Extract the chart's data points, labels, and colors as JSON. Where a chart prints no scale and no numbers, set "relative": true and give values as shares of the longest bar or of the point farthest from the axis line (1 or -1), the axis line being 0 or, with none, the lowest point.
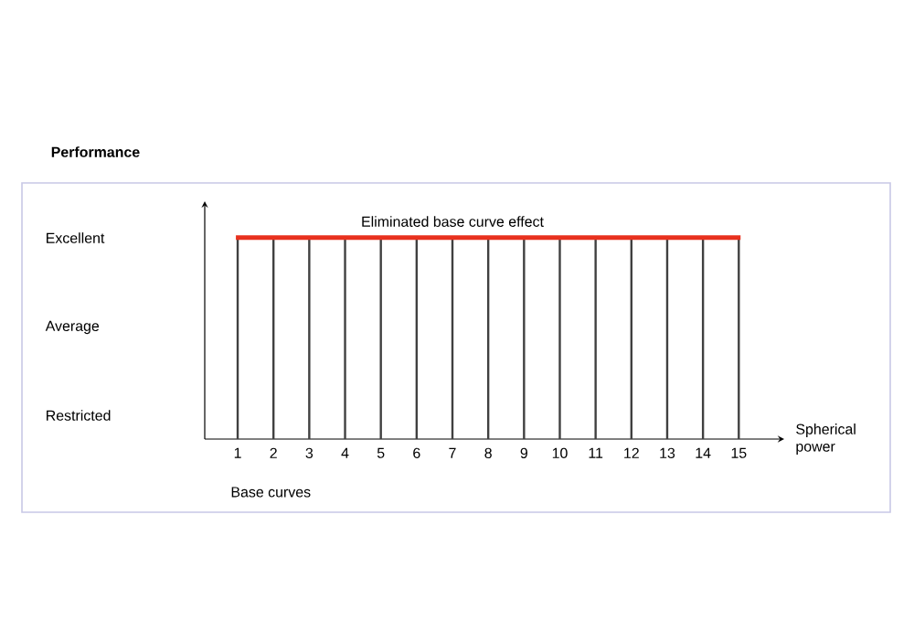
{
  "chart_data": {
    "type": "bar",
    "relative": true,
    "xlabel": "Spherical power",
    "annotations": [
      "Performance",
      "Excellent",
      "Average",
      "Restricted",
      "Base curves"
    ],
    "categories": [
      "1",
      "2",
      "3",
      "4",
      "5",
      "6",
      "7",
      "8",
      "9",
      "10",
      "11",
      "12",
      "13",
      "14",
      "15"
    ],
    "values": [
      1,
      1,
      1,
      1,
      1,
      1,
      1,
      1,
      1,
      1,
      1,
      1,
      1,
      1,
      1
    ],
    "color": "#404040",
    "ref_lines": [
      {
        "axis": "y",
        "value": 1,
        "label": "Eliminated base curve effect",
        "color": "#e8311e"
      }
    ]
  }
}
